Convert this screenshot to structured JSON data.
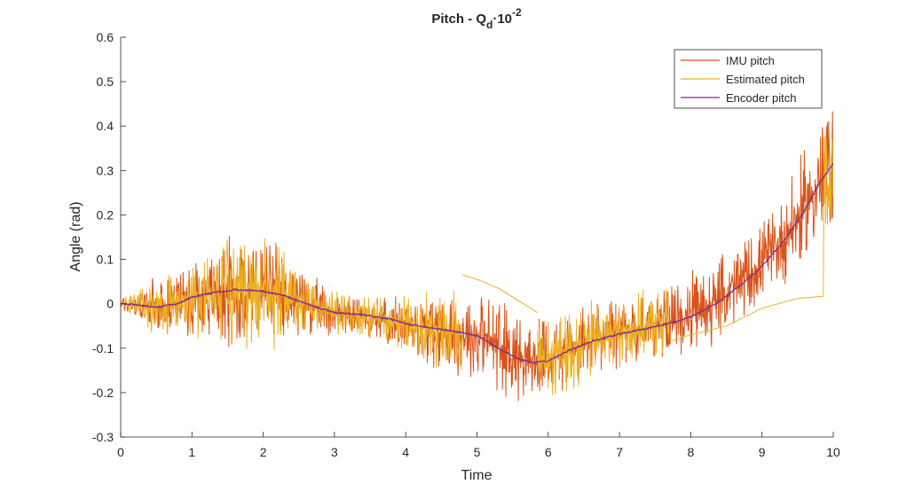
{
  "chart_data": {
    "type": "line",
    "title": {
      "main": "Pitch - Q",
      "sub": "d",
      "times": "·10",
      "exp": "-2"
    },
    "xlabel": "Time",
    "ylabel": "Angle (rad)",
    "xlim": [
      0,
      10
    ],
    "ylim": [
      -0.3,
      0.6
    ],
    "xticks": [
      0,
      1,
      2,
      3,
      4,
      5,
      6,
      7,
      8,
      9,
      10
    ],
    "yticks": [
      -0.3,
      -0.2,
      -0.1,
      0,
      0.1,
      0.2,
      0.3,
      0.4,
      0.5,
      0.6
    ],
    "ytick_labels": [
      "-0.3",
      "-0.2",
      "-0.1",
      "0",
      "0.1",
      "0.2",
      "0.3",
      "0.4",
      "0.5",
      "0.6"
    ],
    "grid": false,
    "legend_position": "top-right",
    "series": [
      {
        "name": "IMU pitch",
        "color": "#D95319",
        "style": "noisy",
        "x": [
          0,
          0.5,
          1.0,
          1.5,
          2.0,
          2.5,
          3.0,
          3.5,
          4.0,
          4.5,
          5.0,
          5.5,
          5.8,
          6.0,
          6.5,
          7.0,
          7.5,
          8.0,
          8.5,
          9.0,
          9.5,
          10.0
        ],
        "center": [
          0.0,
          -0.005,
          0.01,
          0.025,
          0.03,
          0.005,
          -0.02,
          -0.03,
          -0.045,
          -0.06,
          -0.07,
          -0.11,
          -0.13,
          -0.125,
          -0.09,
          -0.065,
          -0.045,
          -0.025,
          0.02,
          0.09,
          0.19,
          0.32
        ],
        "amplitude": [
          0.01,
          0.04,
          0.05,
          0.08,
          0.09,
          0.05,
          0.03,
          0.03,
          0.04,
          0.06,
          0.07,
          0.07,
          0.06,
          0.06,
          0.06,
          0.05,
          0.05,
          0.06,
          0.06,
          0.06,
          0.08,
          0.1
        ]
      },
      {
        "name": "Estimated pitch",
        "color": "#EDB120",
        "style": "noisy-then-smooth",
        "x": [
          0,
          0.5,
          1.0,
          1.5,
          2.0,
          2.5,
          3.0,
          3.5,
          4.0,
          4.5,
          4.8,
          5.0,
          5.5,
          6.0,
          6.5,
          7.0,
          7.5,
          7.7,
          8.0,
          8.5,
          9.0,
          9.5,
          9.85,
          9.86,
          10.0
        ],
        "center": [
          0.0,
          -0.005,
          0.01,
          0.025,
          0.03,
          0.005,
          -0.02,
          -0.03,
          -0.045,
          -0.06,
          -0.065,
          -0.07,
          -0.11,
          -0.125,
          -0.09,
          -0.065,
          -0.045,
          -0.04,
          -0.025,
          0.02,
          0.09,
          0.19,
          0.27,
          0.27,
          0.32
        ],
        "amplitude": [
          0.01,
          0.04,
          0.05,
          0.08,
          0.09,
          0.05,
          0.03,
          0.03,
          0.04,
          0.06,
          0.07,
          0.07,
          0.07,
          0.06,
          0.06,
          0.05,
          0.05,
          0.05,
          0.06,
          0.06,
          0.06,
          0.08,
          0.1,
          0.1,
          0.1
        ],
        "noisy_until": 4.8,
        "smooth_segment_1": {
          "x": [
            4.8,
            5.0,
            5.3,
            5.6,
            5.85
          ],
          "y": [
            0.065,
            0.055,
            0.035,
            0.005,
            -0.02
          ]
        },
        "noisy_from": 5.85,
        "noisy_until_2": 7.7,
        "smooth_segment_2": {
          "x": [
            7.7,
            8.0,
            8.5,
            9.0,
            9.5,
            9.86,
            9.87
          ],
          "y": [
            -0.085,
            -0.07,
            -0.05,
            -0.01,
            0.012,
            0.017,
            0.3
          ]
        },
        "noisy_from_2": 9.87
      },
      {
        "name": "Encoder pitch",
        "color": "#7E2F8E",
        "style": "smooth",
        "x": [
          0,
          0.2,
          0.5,
          0.8,
          1.0,
          1.3,
          1.6,
          2.0,
          2.3,
          2.6,
          3.0,
          3.4,
          3.8,
          4.0,
          4.4,
          4.8,
          5.0,
          5.3,
          5.6,
          5.8,
          6.0,
          6.3,
          6.6,
          7.0,
          7.4,
          7.8,
          8.0,
          8.4,
          8.8,
          9.0,
          9.3,
          9.6,
          9.8,
          10.0
        ],
        "y": [
          0.0,
          -0.002,
          -0.008,
          0.0,
          0.015,
          0.025,
          0.032,
          0.028,
          0.018,
          0.0,
          -0.02,
          -0.025,
          -0.035,
          -0.045,
          -0.055,
          -0.065,
          -0.072,
          -0.1,
          -0.125,
          -0.133,
          -0.128,
          -0.105,
          -0.085,
          -0.068,
          -0.055,
          -0.04,
          -0.03,
          0.005,
          0.055,
          0.085,
          0.14,
          0.21,
          0.27,
          0.315
        ]
      }
    ]
  }
}
